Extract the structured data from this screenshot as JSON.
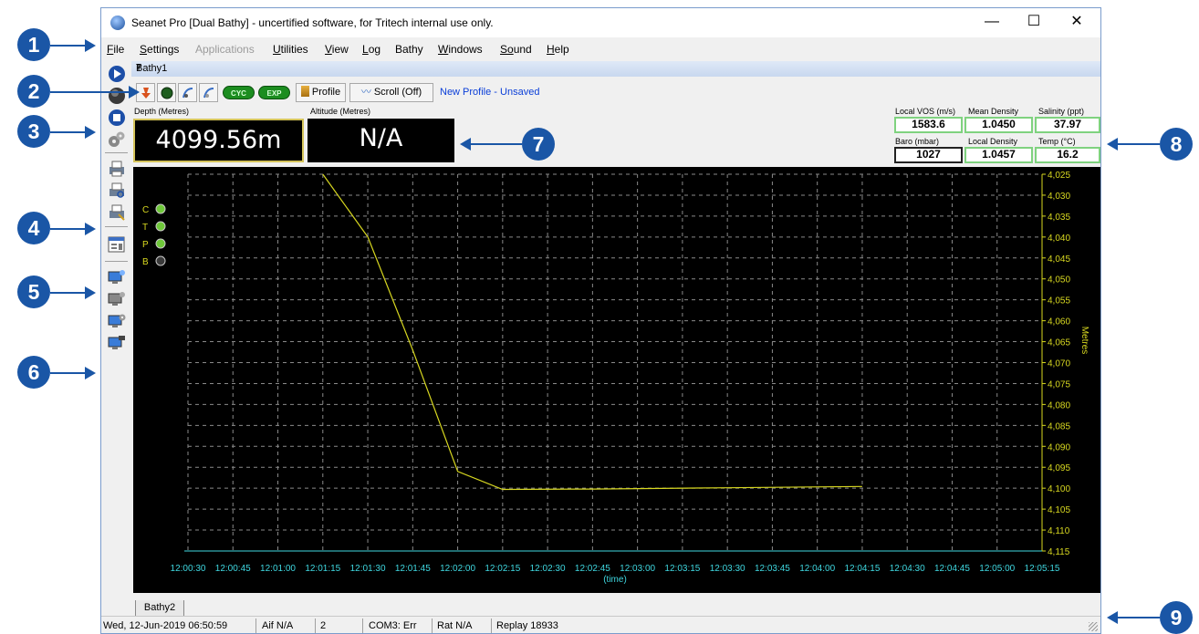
{
  "window": {
    "title": "Seanet Pro [Dual Bathy] - uncertified software, for Tritech internal use only.",
    "minimize": "—",
    "maximize": "☐",
    "close": "✕"
  },
  "menu": [
    {
      "label": "File",
      "ul": "F",
      "rest": "ile",
      "disabled": false
    },
    {
      "label": "Settings",
      "ul": "S",
      "rest": "ettings",
      "disabled": false
    },
    {
      "label": "Applications",
      "ul": "",
      "rest": "Applications",
      "disabled": true
    },
    {
      "label": "Utilities",
      "ul": "U",
      "rest": "tilities",
      "disabled": false
    },
    {
      "label": "View",
      "ul": "V",
      "rest": "iew",
      "disabled": false
    },
    {
      "label": "Log",
      "ul": "L",
      "rest": "og",
      "disabled": false
    },
    {
      "label": "Bathy",
      "ul": "",
      "rest": "Bathy",
      "disabled": false
    },
    {
      "label": "Windows",
      "ul": "W",
      "rest": "indows",
      "disabled": false
    },
    {
      "label": "Sound",
      "ul": "So",
      "rest": "und",
      "disabled": false
    },
    {
      "label": "Help",
      "ul": "H",
      "rest": "elp",
      "disabled": false
    }
  ],
  "document": {
    "title": "Bathy1",
    "pin": "₮"
  },
  "toolbar": {
    "cyc": "CYC",
    "exp": "EXP",
    "profile": "Profile",
    "scroll": "Scroll (Off)",
    "status": "New Profile - Unsaved"
  },
  "readouts": {
    "depth_label": "Depth (Metres)",
    "depth_value": "4099.56m",
    "altitude_label": "Altitude (Metres)",
    "altitude_value": "N/A"
  },
  "env": {
    "local_vos_label": "Local VOS (m/s)",
    "local_vos": "1583.6",
    "mean_density_label": "Mean Density",
    "mean_density": "1.0450",
    "salinity_label": "Salinity (ppt)",
    "salinity": "37.97",
    "baro_label": "Baro (mbar)",
    "baro": "1027",
    "local_density_label": "Local Density",
    "local_density": "1.0457",
    "temp_label": "Temp (°C)",
    "temp": "16.2"
  },
  "indicators": [
    "C",
    "T",
    "P",
    "B"
  ],
  "chart_data": {
    "type": "line",
    "xlabel": "(time)",
    "ylabel": "Metres",
    "y_inverted": true,
    "ylim": [
      4025,
      4115
    ],
    "grid": true,
    "x_ticks": [
      "12:00:30",
      "12:00:45",
      "12:01:00",
      "12:01:15",
      "12:01:30",
      "12:01:45",
      "12:02:00",
      "12:02:15",
      "12:02:30",
      "12:02:45",
      "12:03:00",
      "12:03:15",
      "12:03:30",
      "12:03:45",
      "12:04:00",
      "12:04:15",
      "12:04:30",
      "12:04:45",
      "12:05:00",
      "12:05:15"
    ],
    "y_ticks": [
      "4,025",
      "4,030",
      "4,035",
      "4,040",
      "4,045",
      "4,050",
      "4,055",
      "4,060",
      "4,065",
      "4,070",
      "4,075",
      "4,080",
      "4,085",
      "4,090",
      "4,095",
      "4,100",
      "4,105",
      "4,110",
      "4,115"
    ],
    "line_color": "#d8d820",
    "series": [
      {
        "points": [
          [
            "12:01:15",
            4025
          ],
          [
            "12:01:30",
            4040
          ],
          [
            "12:01:45",
            4067
          ],
          [
            "12:02:00",
            4096
          ],
          [
            "12:02:15",
            4100.3
          ],
          [
            "12:02:45",
            4100.2
          ],
          [
            "12:03:30",
            4099.9
          ],
          [
            "12:04:15",
            4099.6
          ]
        ]
      }
    ]
  },
  "tabs": [
    "Bathy2"
  ],
  "status": {
    "datetime": "Wed, 12-Jun-2019 06:50:59",
    "aif": "Aif N/A",
    "count": "2",
    "com": "COM3: Err",
    "rat": "Rat N/A",
    "replay": "Replay 18933"
  },
  "callouts": [
    "1",
    "2",
    "3",
    "4",
    "5",
    "6",
    "7",
    "8",
    "9"
  ]
}
